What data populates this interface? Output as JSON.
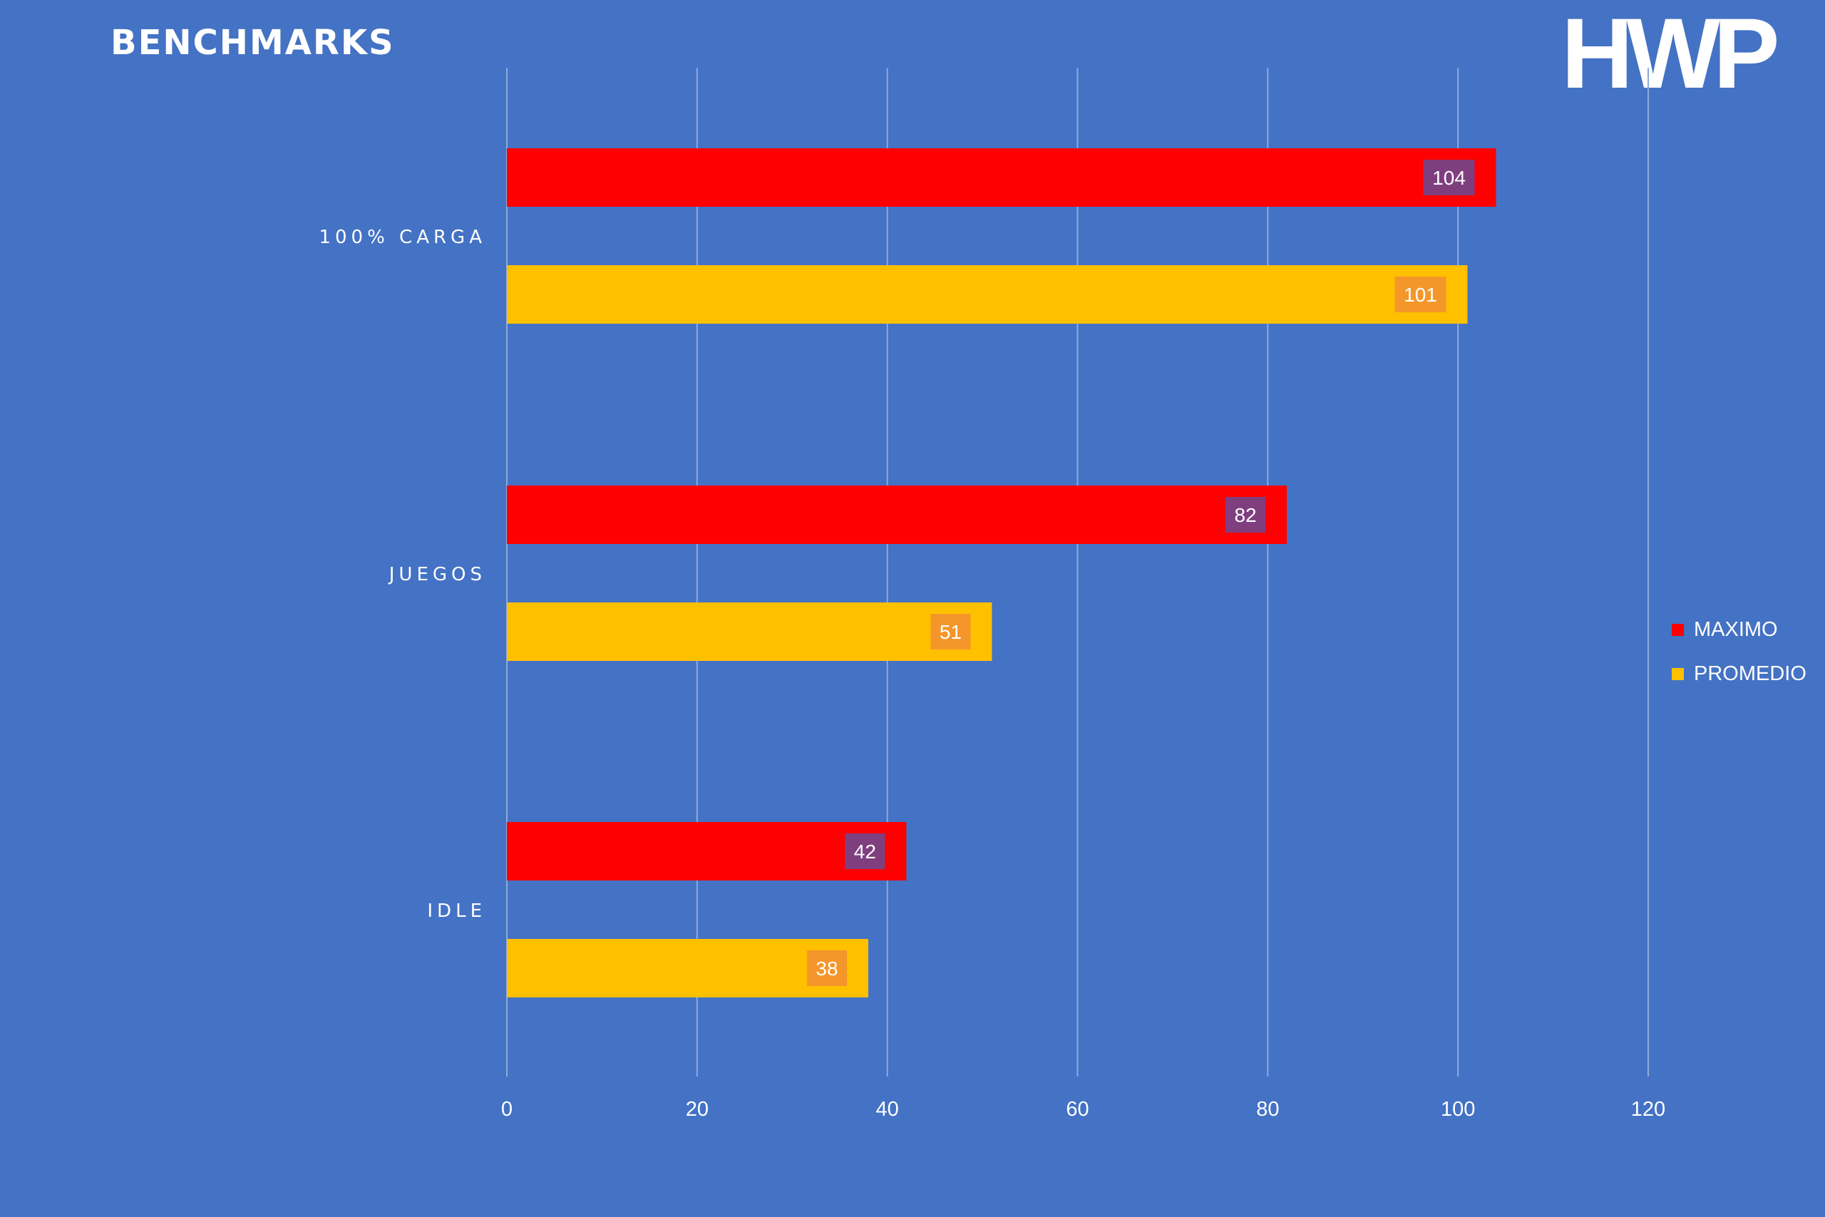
{
  "header": {
    "title": "BENCHMARKS",
    "logo_text": "HWP"
  },
  "colors": {
    "background": "#4472c4",
    "gridline": "#8ea9dd",
    "maximo": "#ff0000",
    "promedio": "#ffc000",
    "maximo_label_bg": "#7f3f7f",
    "promedio_label_bg": "#f5962a",
    "text": "#ffffff"
  },
  "chart_data": {
    "type": "bar",
    "orientation": "horizontal",
    "title": "BENCHMARKS",
    "categories": [
      "100% CARGA",
      "JUEGOS",
      "IDLE"
    ],
    "series": [
      {
        "name": "MAXIMO",
        "values": [
          104,
          82,
          42
        ],
        "color": "#ff0000"
      },
      {
        "name": "PROMEDIO",
        "values": [
          101,
          51,
          38
        ],
        "color": "#ffc000"
      }
    ],
    "xlim": [
      0,
      120
    ],
    "xticks": [
      "0",
      "20",
      "40",
      "60",
      "80",
      "100",
      "120"
    ],
    "xlabel": "",
    "ylabel": "",
    "grid": true,
    "legend_position": "right",
    "data_labels": true
  }
}
